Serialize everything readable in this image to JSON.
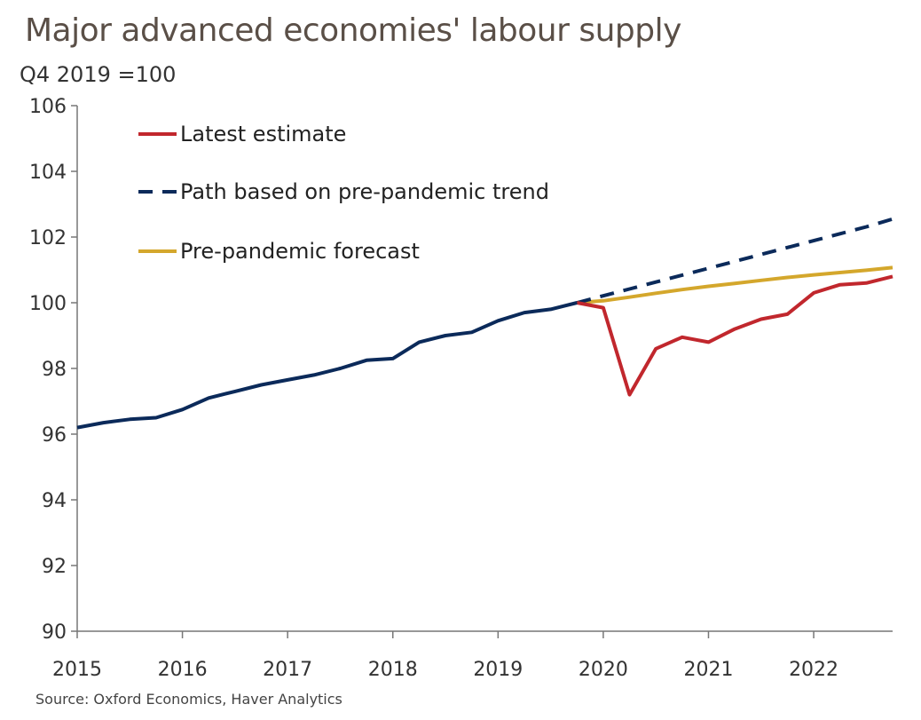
{
  "title": "Major advanced economies' labour supply",
  "unit_label": "Q4 2019 =100",
  "source": "Source: Oxford Economics, Haver Analytics",
  "colors": {
    "latest": "#c1272d",
    "trend": "#0b2a5a",
    "forecast": "#d4a72c",
    "axis": "#777777",
    "text": "#333333"
  },
  "chart_data": {
    "type": "line",
    "title": "Major advanced economies' labour supply",
    "ylabel": "Q4 2019 =100",
    "xlabel": "",
    "ylim": [
      90,
      106
    ],
    "yticks": [
      "90",
      "92",
      "94",
      "96",
      "98",
      "100",
      "102",
      "104",
      "106"
    ],
    "xticks": [
      "2015",
      "2016",
      "2017",
      "2018",
      "2019",
      "2020",
      "2021",
      "2022"
    ],
    "grid": false,
    "legend_position": "top-left",
    "series": [
      {
        "name": "Latest estimate",
        "style": "solid",
        "color_key": "latest",
        "x": [
          2015.0,
          2015.25,
          2015.5,
          2015.75,
          2016.0,
          2016.25,
          2016.5,
          2016.75,
          2017.0,
          2017.25,
          2017.5,
          2017.75,
          2018.0,
          2018.25,
          2018.5,
          2018.75,
          2019.0,
          2019.25,
          2019.5,
          2019.75,
          2020.0,
          2020.25,
          2020.5,
          2020.75,
          2021.0,
          2021.25,
          2021.5,
          2021.75,
          2022.0,
          2022.25,
          2022.5,
          2022.75
        ],
        "values": [
          96.2,
          96.35,
          96.45,
          96.5,
          96.75,
          97.1,
          97.3,
          97.5,
          97.65,
          97.8,
          98.0,
          98.25,
          98.3,
          98.8,
          99.0,
          99.1,
          99.45,
          99.7,
          99.8,
          100.0,
          99.85,
          97.2,
          98.6,
          98.95,
          98.8,
          99.2,
          99.5,
          99.65,
          100.3,
          100.55,
          100.6,
          100.8
        ],
        "pre_pandemic_color_key": "trend",
        "pre_pandemic_until": 2019.75
      },
      {
        "name": "Path based on pre-pandemic trend",
        "style": "dashed",
        "color_key": "trend",
        "x": [
          2019.75,
          2020.0,
          2020.25,
          2020.5,
          2020.75,
          2021.0,
          2021.25,
          2021.5,
          2021.75,
          2022.0,
          2022.25,
          2022.5,
          2022.75
        ],
        "values": [
          100.0,
          100.21,
          100.42,
          100.63,
          100.84,
          101.05,
          101.26,
          101.47,
          101.68,
          101.89,
          102.1,
          102.31,
          102.55
        ]
      },
      {
        "name": "Pre-pandemic forecast",
        "style": "solid",
        "color_key": "forecast",
        "x": [
          2019.75,
          2020.0,
          2020.25,
          2020.5,
          2020.75,
          2021.0,
          2021.25,
          2021.5,
          2021.75,
          2022.0,
          2022.25,
          2022.5,
          2022.75
        ],
        "values": [
          100.0,
          100.06,
          100.17,
          100.29,
          100.4,
          100.5,
          100.59,
          100.68,
          100.77,
          100.85,
          100.92,
          100.99,
          101.07
        ]
      }
    ]
  }
}
